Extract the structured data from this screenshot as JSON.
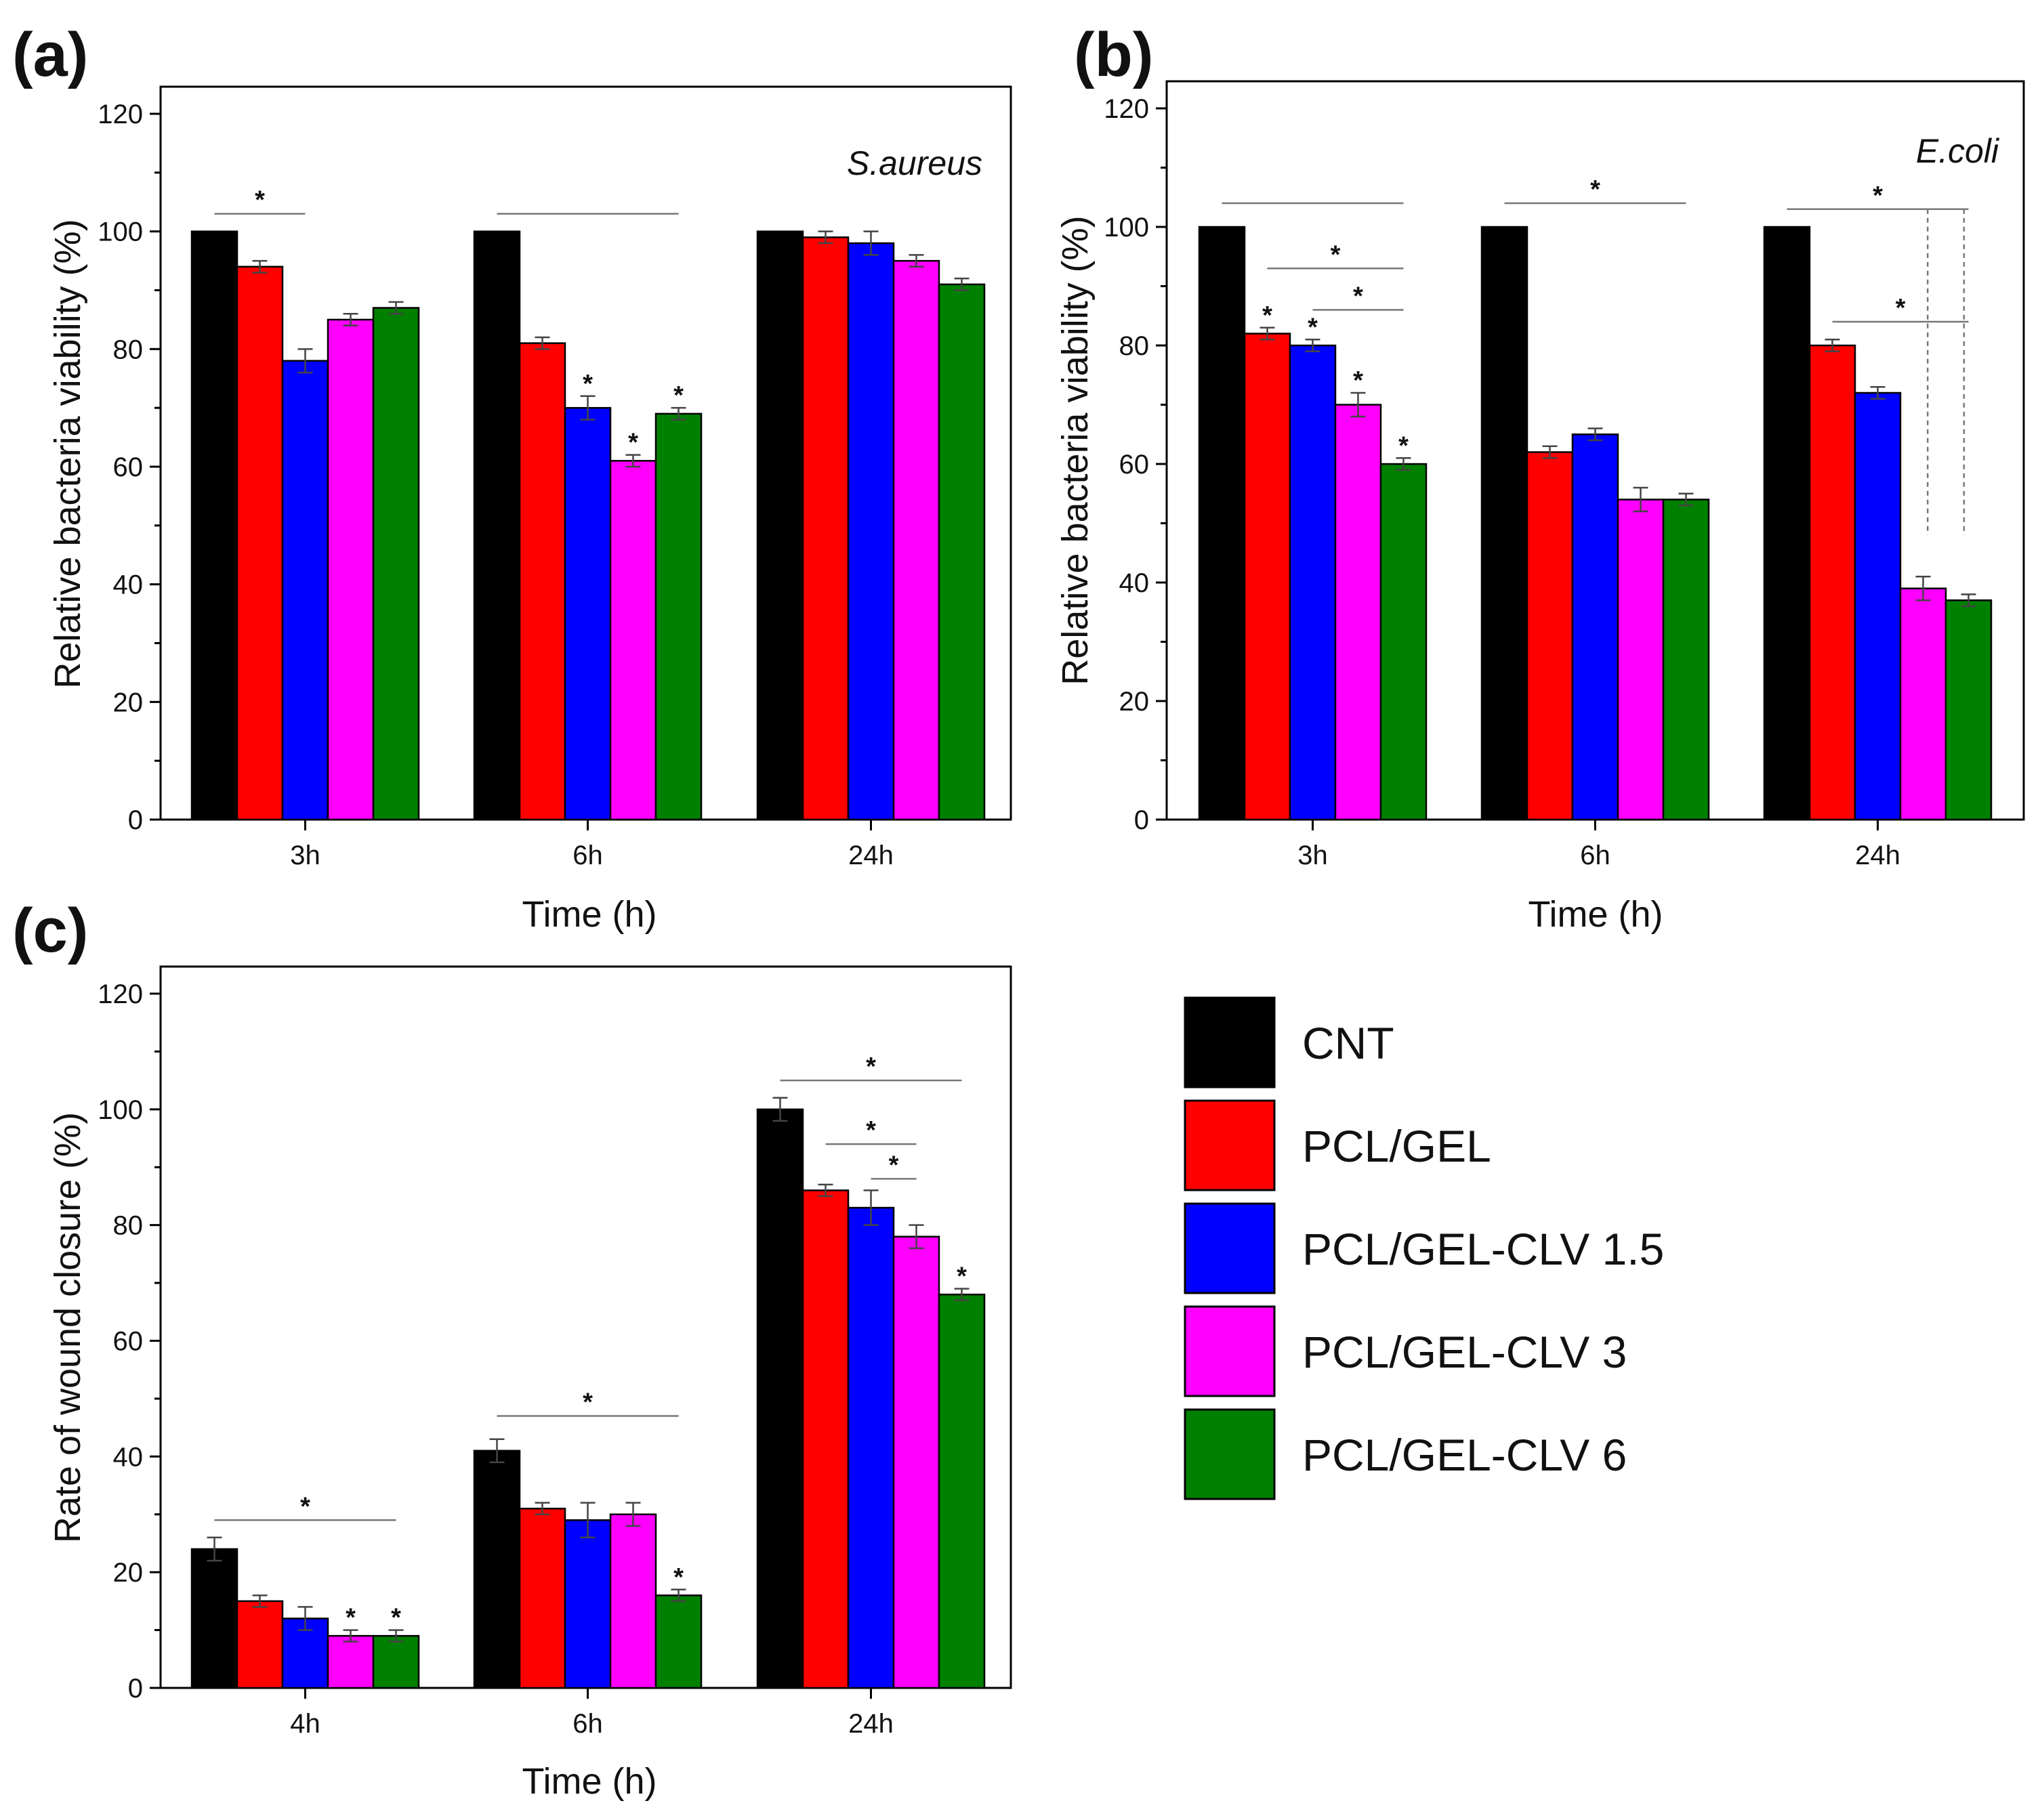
{
  "legend": {
    "entries": [
      "CNT",
      "PCL/GEL",
      "PCL/GEL-CLV 1.5",
      "PCL/GEL-CLV 3",
      "PCL/GEL-CLV 6"
    ],
    "colors": [
      "#000000",
      "#ff0000",
      "#0000ff",
      "#ff00ff",
      "#008000"
    ]
  },
  "chart_data": [
    {
      "panel": "(a)",
      "type": "bar",
      "annotation": "S.aureus",
      "categories": [
        "3h",
        "6h",
        "24h"
      ],
      "xlabel": "Time (h)",
      "ylabel": "Relative bacteria viability (%)",
      "ylim": [
        0,
        120
      ],
      "yticks": [
        0,
        20,
        40,
        60,
        80,
        100,
        120
      ],
      "series": [
        {
          "name": "CNT",
          "values": [
            100,
            100,
            100
          ],
          "errors": [
            0,
            0,
            0
          ],
          "star": [
            false,
            false,
            false
          ]
        },
        {
          "name": "PCL/GEL",
          "values": [
            94,
            81,
            99
          ],
          "errors": [
            1,
            1,
            1
          ],
          "star": [
            false,
            false,
            false
          ]
        },
        {
          "name": "PCL/GEL-CLV 1.5",
          "values": [
            78,
            70,
            98
          ],
          "errors": [
            2,
            2,
            2
          ],
          "star": [
            false,
            true,
            false
          ]
        },
        {
          "name": "PCL/GEL-CLV 3",
          "values": [
            85,
            61,
            95
          ],
          "errors": [
            1,
            1,
            1
          ],
          "star": [
            false,
            true,
            false
          ]
        },
        {
          "name": "PCL/GEL-CLV 6",
          "values": [
            87,
            69,
            91
          ],
          "errors": [
            1,
            1,
            1
          ],
          "star": [
            false,
            true,
            false
          ]
        }
      ],
      "brackets": [
        {
          "group": 0,
          "from": 0,
          "to": 2,
          "y": 103,
          "star": true
        },
        {
          "group": 1,
          "from": 0,
          "to": 4,
          "y": 103,
          "star": false
        }
      ],
      "dashed_lines": []
    },
    {
      "panel": "(b)",
      "type": "bar",
      "annotation": "E.coli",
      "categories": [
        "3h",
        "6h",
        "24h"
      ],
      "xlabel": "Time (h)",
      "ylabel": "Relative bacteria viability (%)",
      "ylim": [
        0,
        120
      ],
      "yticks": [
        0,
        20,
        40,
        60,
        80,
        100,
        120
      ],
      "series": [
        {
          "name": "CNT",
          "values": [
            100,
            100,
            100
          ],
          "errors": [
            0,
            0,
            0
          ],
          "star": [
            false,
            false,
            false
          ]
        },
        {
          "name": "PCL/GEL",
          "values": [
            82,
            62,
            80
          ],
          "errors": [
            1,
            1,
            1
          ],
          "star": [
            true,
            false,
            false
          ]
        },
        {
          "name": "PCL/GEL-CLV 1.5",
          "values": [
            80,
            65,
            72
          ],
          "errors": [
            1,
            1,
            1
          ],
          "star": [
            true,
            false,
            false
          ]
        },
        {
          "name": "PCL/GEL-CLV 3",
          "values": [
            70,
            54,
            39
          ],
          "errors": [
            2,
            2,
            2
          ],
          "star": [
            true,
            false,
            false
          ]
        },
        {
          "name": "PCL/GEL-CLV 6",
          "values": [
            60,
            54,
            37
          ],
          "errors": [
            1,
            1,
            1
          ],
          "star": [
            true,
            false,
            false
          ]
        }
      ],
      "brackets": [
        {
          "group": 0,
          "from": 0,
          "to": 4,
          "y": 104,
          "star": false
        },
        {
          "group": 0,
          "from": 1,
          "to": 4,
          "y": 93,
          "star": true
        },
        {
          "group": 0,
          "from": 2,
          "to": 4,
          "y": 86,
          "star": true
        },
        {
          "group": 1,
          "from": 0,
          "to": 4,
          "y": 104,
          "star": true
        },
        {
          "group": 2,
          "from": 0,
          "to": 4,
          "y": 103,
          "star": true
        },
        {
          "group": 2,
          "from": 1,
          "to": 4,
          "y": 84,
          "star": true
        }
      ],
      "dashed_lines": [
        {
          "group": 2,
          "at": 3.6,
          "from": 103,
          "to": 48
        },
        {
          "group": 2,
          "at": 4.4,
          "from": 103,
          "to": 48
        }
      ]
    },
    {
      "panel": "(c)",
      "type": "bar",
      "annotation": "",
      "categories": [
        "4h",
        "6h",
        "24h"
      ],
      "xlabel": "Time (h)",
      "ylabel": "Rate of wound closure (%)",
      "ylim": [
        0,
        120
      ],
      "yticks": [
        0,
        20,
        40,
        60,
        80,
        100,
        120
      ],
      "series": [
        {
          "name": "CNT",
          "values": [
            24,
            41,
            100
          ],
          "errors": [
            2,
            2,
            2
          ],
          "star": [
            false,
            false,
            false
          ]
        },
        {
          "name": "PCL/GEL",
          "values": [
            15,
            31,
            86
          ],
          "errors": [
            1,
            1,
            1
          ],
          "star": [
            false,
            false,
            false
          ]
        },
        {
          "name": "PCL/GEL-CLV 1.5",
          "values": [
            12,
            29,
            83
          ],
          "errors": [
            2,
            3,
            3
          ],
          "star": [
            false,
            false,
            false
          ]
        },
        {
          "name": "PCL/GEL-CLV 3",
          "values": [
            9,
            30,
            78
          ],
          "errors": [
            1,
            2,
            2
          ],
          "star": [
            true,
            false,
            false
          ]
        },
        {
          "name": "PCL/GEL-CLV 6",
          "values": [
            9,
            16,
            68
          ],
          "errors": [
            1,
            1,
            1
          ],
          "star": [
            true,
            true,
            true
          ]
        }
      ],
      "brackets": [
        {
          "group": 0,
          "from": 0,
          "to": 4,
          "y": 29,
          "star": true
        },
        {
          "group": 1,
          "from": 0,
          "to": 4,
          "y": 47,
          "star": true
        },
        {
          "group": 2,
          "from": 0,
          "to": 4,
          "y": 105,
          "star": true
        },
        {
          "group": 2,
          "from": 1,
          "to": 3,
          "y": 94,
          "star": true
        },
        {
          "group": 2,
          "from": 2,
          "to": 3,
          "y": 88,
          "star": true
        }
      ],
      "dashed_lines": []
    }
  ]
}
